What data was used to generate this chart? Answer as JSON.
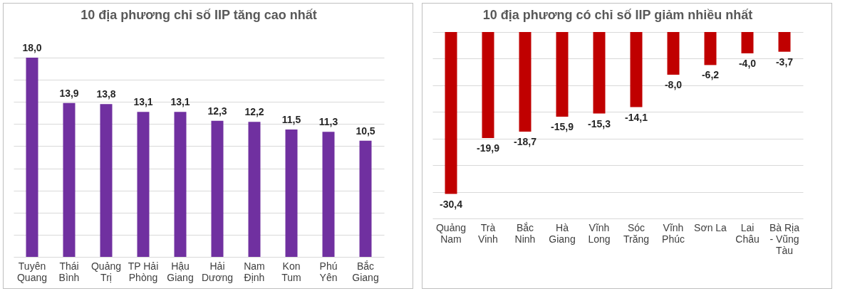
{
  "chart_data": [
    {
      "type": "bar",
      "title": "10 địa phương chỉ số IIP tăng cao nhất",
      "categories": [
        "Tuyên Quang",
        "Thái Bình",
        "Quảng Trị",
        "TP Hải Phòng",
        "Hậu Giang",
        "Hải Dương",
        "Nam Định",
        "Kon Tum",
        "Phú Yên",
        "Bắc Giang"
      ],
      "values": [
        18.0,
        13.9,
        13.8,
        13.1,
        13.1,
        12.3,
        12.2,
        11.5,
        11.3,
        10.5
      ],
      "value_labels": [
        "18,0",
        "13,9",
        "13,8",
        "13,1",
        "13,1",
        "12,3",
        "12,2",
        "11,5",
        "11,3",
        "10,5"
      ],
      "color": "#7030a0",
      "grid": "y",
      "tick_labels": "x"
    },
    {
      "type": "bar",
      "title": "10 địa phương có chỉ số IIP giảm nhiều nhất",
      "categories": [
        "Quảng Nam",
        "Trà Vinh",
        "Bắc Ninh",
        "Hà Giang",
        "Vĩnh Long",
        "Sóc Trăng",
        "Vĩnh Phúc",
        "Sơn La",
        "Lai Châu",
        "Bà Rịa - Vũng Tàu"
      ],
      "values": [
        -30.4,
        -19.9,
        -18.7,
        -15.9,
        -15.3,
        -14.1,
        -8.0,
        -6.2,
        -4.0,
        -3.7
      ],
      "value_labels": [
        "-30,4",
        "-19,9",
        "-18,7",
        "-15,9",
        "-15,3",
        "-14,1",
        "-8,0",
        "-6,2",
        "-4,0",
        "-3,7"
      ],
      "color": "#c00000",
      "grid": "y",
      "tick_labels": "x"
    }
  ]
}
